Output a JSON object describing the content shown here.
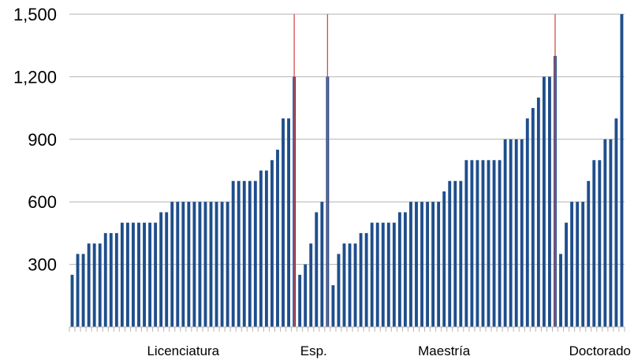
{
  "chart_data": {
    "type": "bar",
    "title": "",
    "xlabel": "",
    "ylabel": "",
    "ylim": [
      0,
      1500
    ],
    "yticks": [
      300,
      600,
      900,
      1200,
      1500
    ],
    "ytick_labels": [
      "300",
      "600",
      "900",
      "1,200",
      "1,500"
    ],
    "grid": true,
    "legend": "none",
    "groups": [
      {
        "label": "Licenciatura",
        "values": [
          250,
          350,
          350,
          400,
          400,
          400,
          450,
          450,
          450,
          500,
          500,
          500,
          500,
          500,
          500,
          500,
          550,
          550,
          600,
          600,
          600,
          600,
          600,
          600,
          600,
          600,
          600,
          600,
          600,
          700,
          700,
          700,
          700,
          700,
          750,
          750,
          800,
          850,
          1000,
          1000,
          1200
        ]
      },
      {
        "label": "Esp.",
        "values": [
          250,
          300,
          400,
          550,
          600,
          1200
        ]
      },
      {
        "label": "Maestría",
        "values": [
          200,
          350,
          400,
          400,
          400,
          450,
          450,
          500,
          500,
          500,
          500,
          500,
          550,
          550,
          600,
          600,
          600,
          600,
          600,
          600,
          650,
          700,
          700,
          700,
          800,
          800,
          800,
          800,
          800,
          800,
          800,
          900,
          900,
          900,
          900,
          1000,
          1050,
          1100,
          1200,
          1200,
          1300
        ]
      },
      {
        "label": "Doctorado",
        "values": [
          350,
          500,
          600,
          600,
          600,
          700,
          800,
          800,
          900,
          900,
          1000,
          1500
        ]
      }
    ],
    "colors": {
      "bar": "#1f4e8c",
      "separator": "#d94b4b",
      "grid": "#b3b3b3",
      "axis": "#b3b3b3"
    }
  }
}
